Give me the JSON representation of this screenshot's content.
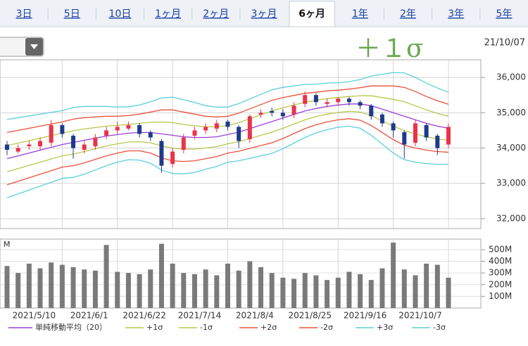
{
  "tabs": [
    {
      "label": "3日"
    },
    {
      "label": "5日"
    },
    {
      "label": "10日"
    },
    {
      "label": "1ヶ月"
    },
    {
      "label": "2ヶ月"
    },
    {
      "label": "3ヶ月"
    },
    {
      "label": "6ヶ月",
      "selected": true
    },
    {
      "label": "1年"
    },
    {
      "label": "2年"
    },
    {
      "label": "3年"
    },
    {
      "label": "5年"
    }
  ],
  "date": "21/10/07",
  "chart_data": [
    {
      "type": "candlestick",
      "annotation": "＋１σ",
      "categories": [
        null,
        null,
        null,
        null,
        null,
        "2021/5/10",
        null,
        null,
        null,
        null,
        "2021/6/1",
        null,
        null,
        null,
        null,
        "2021/6/22",
        null,
        null,
        null,
        null,
        "2021/7/14",
        null,
        null,
        null,
        null,
        "2021/8/4",
        null,
        null,
        null,
        null,
        "2021/8/25",
        null,
        null,
        null,
        null,
        "2021/9/16",
        null,
        null,
        null,
        null,
        "2021/10/7"
      ],
      "open": [
        34100,
        33900,
        34050,
        34050,
        34150,
        34650,
        34350,
        33950,
        34050,
        34350,
        34500,
        34550,
        34650,
        34450,
        34200,
        33550,
        33950,
        34350,
        34500,
        34550,
        34750,
        34600,
        34250,
        34950,
        35050,
        35000,
        34950,
        35250,
        35500,
        35250,
        35300,
        35400,
        35300,
        35200,
        34950,
        34700,
        34450,
        34150,
        34650,
        34350,
        34100
      ],
      "high": [
        34200,
        34100,
        34200,
        34300,
        34800,
        34700,
        34400,
        34200,
        34400,
        34600,
        34750,
        34750,
        34700,
        34500,
        34250,
        34000,
        34400,
        34600,
        34700,
        34800,
        34800,
        34650,
        34950,
        35100,
        35150,
        35100,
        35300,
        35600,
        35550,
        35400,
        35450,
        35450,
        35350,
        35250,
        35000,
        34750,
        34500,
        34800,
        34700,
        34400,
        34700
      ],
      "low": [
        33800,
        33850,
        33950,
        33950,
        34050,
        34300,
        33700,
        33850,
        33950,
        34250,
        34400,
        34500,
        34300,
        34200,
        33300,
        33450,
        33850,
        34250,
        34400,
        34450,
        34500,
        34000,
        34150,
        34850,
        34900,
        34800,
        34850,
        35150,
        35200,
        35150,
        35200,
        35200,
        35100,
        34800,
        34600,
        34300,
        33700,
        34050,
        34200,
        33800,
        34000
      ],
      "close": [
        33950,
        34000,
        34100,
        34200,
        34650,
        34400,
        34000,
        34100,
        34300,
        34500,
        34600,
        34650,
        34400,
        34300,
        33500,
        33900,
        34300,
        34500,
        34600,
        34700,
        34600,
        34200,
        34900,
        35000,
        35000,
        34900,
        35200,
        35500,
        35300,
        35300,
        35400,
        35300,
        35200,
        34900,
        34700,
        34500,
        34100,
        34700,
        34300,
        34000,
        34600
      ],
      "up_color": "#e8344a",
      "down_color": "#1f3a8a",
      "series": [
        {
          "name": "単純移動平均（20）",
          "color": "#9a3fd6",
          "values": [
            33700,
            33780,
            33860,
            33940,
            34020,
            34100,
            34160,
            34220,
            34280,
            34340,
            34380,
            34420,
            34440,
            34440,
            34400,
            34360,
            34320,
            34300,
            34300,
            34320,
            34380,
            34450,
            34550,
            34650,
            34750,
            34850,
            34950,
            35050,
            35120,
            35180,
            35220,
            35250,
            35250,
            35200,
            35100,
            35000,
            34900,
            34800,
            34700,
            34620,
            34560
          ]
        },
        {
          "name": "+1σ",
          "color": "#b8c84a",
          "values": [
            34070,
            34140,
            34210,
            34280,
            34350,
            34420,
            34490,
            34540,
            34580,
            34620,
            34640,
            34670,
            34700,
            34730,
            34740,
            34720,
            34670,
            34630,
            34600,
            34600,
            34640,
            34720,
            34830,
            34940,
            35050,
            35140,
            35220,
            35300,
            35350,
            35400,
            35430,
            35460,
            35480,
            35480,
            35430,
            35380,
            35310,
            35200,
            35080,
            34980,
            34900
          ]
        },
        {
          "name": "-1σ",
          "color": "#b8c84a",
          "values": [
            33330,
            33420,
            33510,
            33600,
            33690,
            33780,
            33830,
            33900,
            33980,
            34060,
            34120,
            34170,
            34180,
            34150,
            34060,
            34000,
            33970,
            33970,
            34000,
            34040,
            34120,
            34180,
            34270,
            34360,
            34450,
            34560,
            34680,
            34800,
            34890,
            34960,
            35010,
            35040,
            35020,
            34920,
            34770,
            34620,
            34490,
            34400,
            34320,
            34260,
            34220
          ]
        },
        {
          "name": "+2σ",
          "color": "#e8523a",
          "values": [
            34440,
            34500,
            34560,
            34620,
            34680,
            34740,
            34820,
            34860,
            34880,
            34900,
            34900,
            34920,
            34960,
            35020,
            35080,
            35080,
            35020,
            34960,
            34900,
            34880,
            34900,
            34990,
            35110,
            35230,
            35350,
            35430,
            35490,
            35550,
            35580,
            35620,
            35640,
            35670,
            35710,
            35760,
            35760,
            35760,
            35720,
            35600,
            35460,
            35340,
            35240
          ]
        },
        {
          "name": "-2σ",
          "color": "#e8523a",
          "values": [
            32960,
            33060,
            33160,
            33260,
            33360,
            33460,
            33500,
            33580,
            33680,
            33780,
            33860,
            33920,
            33920,
            33860,
            33720,
            33640,
            33620,
            33640,
            33700,
            33760,
            33860,
            33910,
            33990,
            34070,
            34150,
            34270,
            34410,
            34550,
            34660,
            34740,
            34800,
            34830,
            34790,
            34640,
            34440,
            34240,
            34080,
            34000,
            33940,
            33900,
            33880
          ]
        },
        {
          "name": "+3σ",
          "color": "#5ccfdc",
          "values": [
            34810,
            34860,
            34910,
            34960,
            35010,
            35060,
            35150,
            35180,
            35180,
            35180,
            35160,
            35170,
            35220,
            35310,
            35420,
            35440,
            35370,
            35290,
            35200,
            35160,
            35160,
            35260,
            35390,
            35520,
            35650,
            35720,
            35760,
            35800,
            35810,
            35840,
            35850,
            35880,
            35940,
            36040,
            36090,
            36140,
            36130,
            36000,
            35840,
            35700,
            35580
          ]
        },
        {
          "name": "-3σ",
          "color": "#5ccfdc",
          "values": [
            32590,
            32700,
            32810,
            32920,
            33030,
            33140,
            33170,
            33260,
            33380,
            33500,
            33600,
            33670,
            33660,
            33570,
            33380,
            33280,
            33270,
            33310,
            33400,
            33480,
            33600,
            33640,
            33710,
            33780,
            33850,
            33980,
            34140,
            34300,
            34430,
            34520,
            34590,
            34620,
            34560,
            34360,
            34110,
            33860,
            33670,
            33600,
            33560,
            33540,
            33540
          ]
        }
      ],
      "ylim": [
        31720,
        36500
      ],
      "yticks": [
        {
          "value": 32000,
          "label": "32,000"
        },
        {
          "value": 33000,
          "label": "33,000"
        },
        {
          "value": 34000,
          "label": "34,000"
        },
        {
          "value": 35000,
          "label": "35,000"
        },
        {
          "value": 36000,
          "label": "36,000"
        }
      ],
      "grid": true
    },
    {
      "type": "bar",
      "y_label": "M",
      "color": "#7a7a7a",
      "values": [
        360,
        300,
        380,
        340,
        390,
        370,
        350,
        330,
        320,
        540,
        310,
        300,
        290,
        330,
        550,
        380,
        300,
        290,
        330,
        280,
        380,
        320,
        400,
        350,
        300,
        260,
        250,
        300,
        280,
        240,
        260,
        310,
        290,
        240,
        340,
        560,
        330,
        280,
        380,
        370,
        260
      ],
      "ylim": [
        0,
        590
      ],
      "yticks": [
        {
          "value": 100,
          "label": "100M"
        },
        {
          "value": 200,
          "label": "200M"
        },
        {
          "value": 300,
          "label": "300M"
        },
        {
          "value": 400,
          "label": "400M"
        },
        {
          "value": 500,
          "label": "500M"
        }
      ],
      "grid": true
    }
  ]
}
